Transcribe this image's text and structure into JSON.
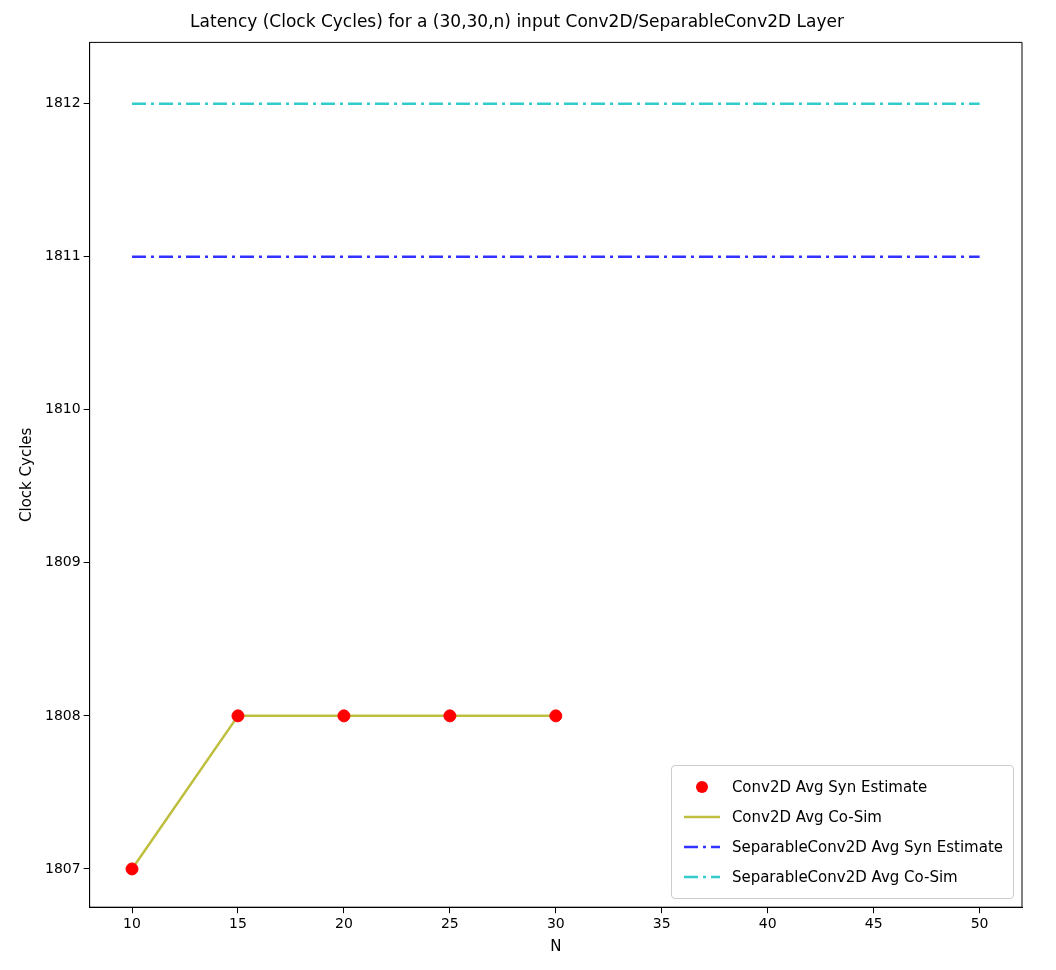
{
  "chart_data": {
    "type": "line",
    "title": "Latency (Clock Cycles) for a (30,30,n) input Conv2D/SeparableConv2D Layer",
    "xlabel": "N",
    "ylabel": "Clock Cycles",
    "series": [
      {
        "name": "Conv2D Avg Syn Estimate",
        "type": "scatter",
        "color": "#ff0000",
        "marker": "circle",
        "x": [
          10,
          15,
          20,
          25,
          30
        ],
        "values": [
          1807,
          1808,
          1808,
          1808,
          1808
        ]
      },
      {
        "name": "Conv2D Avg Co-Sim",
        "color": "#bfbf3f",
        "marker": "none",
        "line_style": "solid",
        "x": [
          10,
          15,
          20,
          25,
          30
        ],
        "values": [
          1807,
          1808,
          1808,
          1808,
          1808
        ]
      },
      {
        "name": "SeparableConv2D Avg Syn Estimate",
        "color": "#3333ff",
        "marker": "none",
        "line_style": "dashed",
        "x": [
          10,
          50
        ],
        "values": [
          1811,
          1811
        ]
      },
      {
        "name": "SeparableConv2D Avg Co-Sim",
        "color": "#33cccc",
        "marker": "none",
        "line_style": "dashed",
        "x": [
          10,
          50
        ],
        "values": [
          1812,
          1812
        ]
      }
    ],
    "xlim": [
      8,
      52
    ],
    "xticks": [
      10,
      15,
      20,
      25,
      30,
      35,
      40,
      45,
      50
    ],
    "ylim": [
      1806.75,
      1812.4
    ],
    "yticks": [
      1807,
      1808,
      1809,
      1810,
      1811,
      1812
    ],
    "grid": false,
    "legend": "bottom right"
  }
}
